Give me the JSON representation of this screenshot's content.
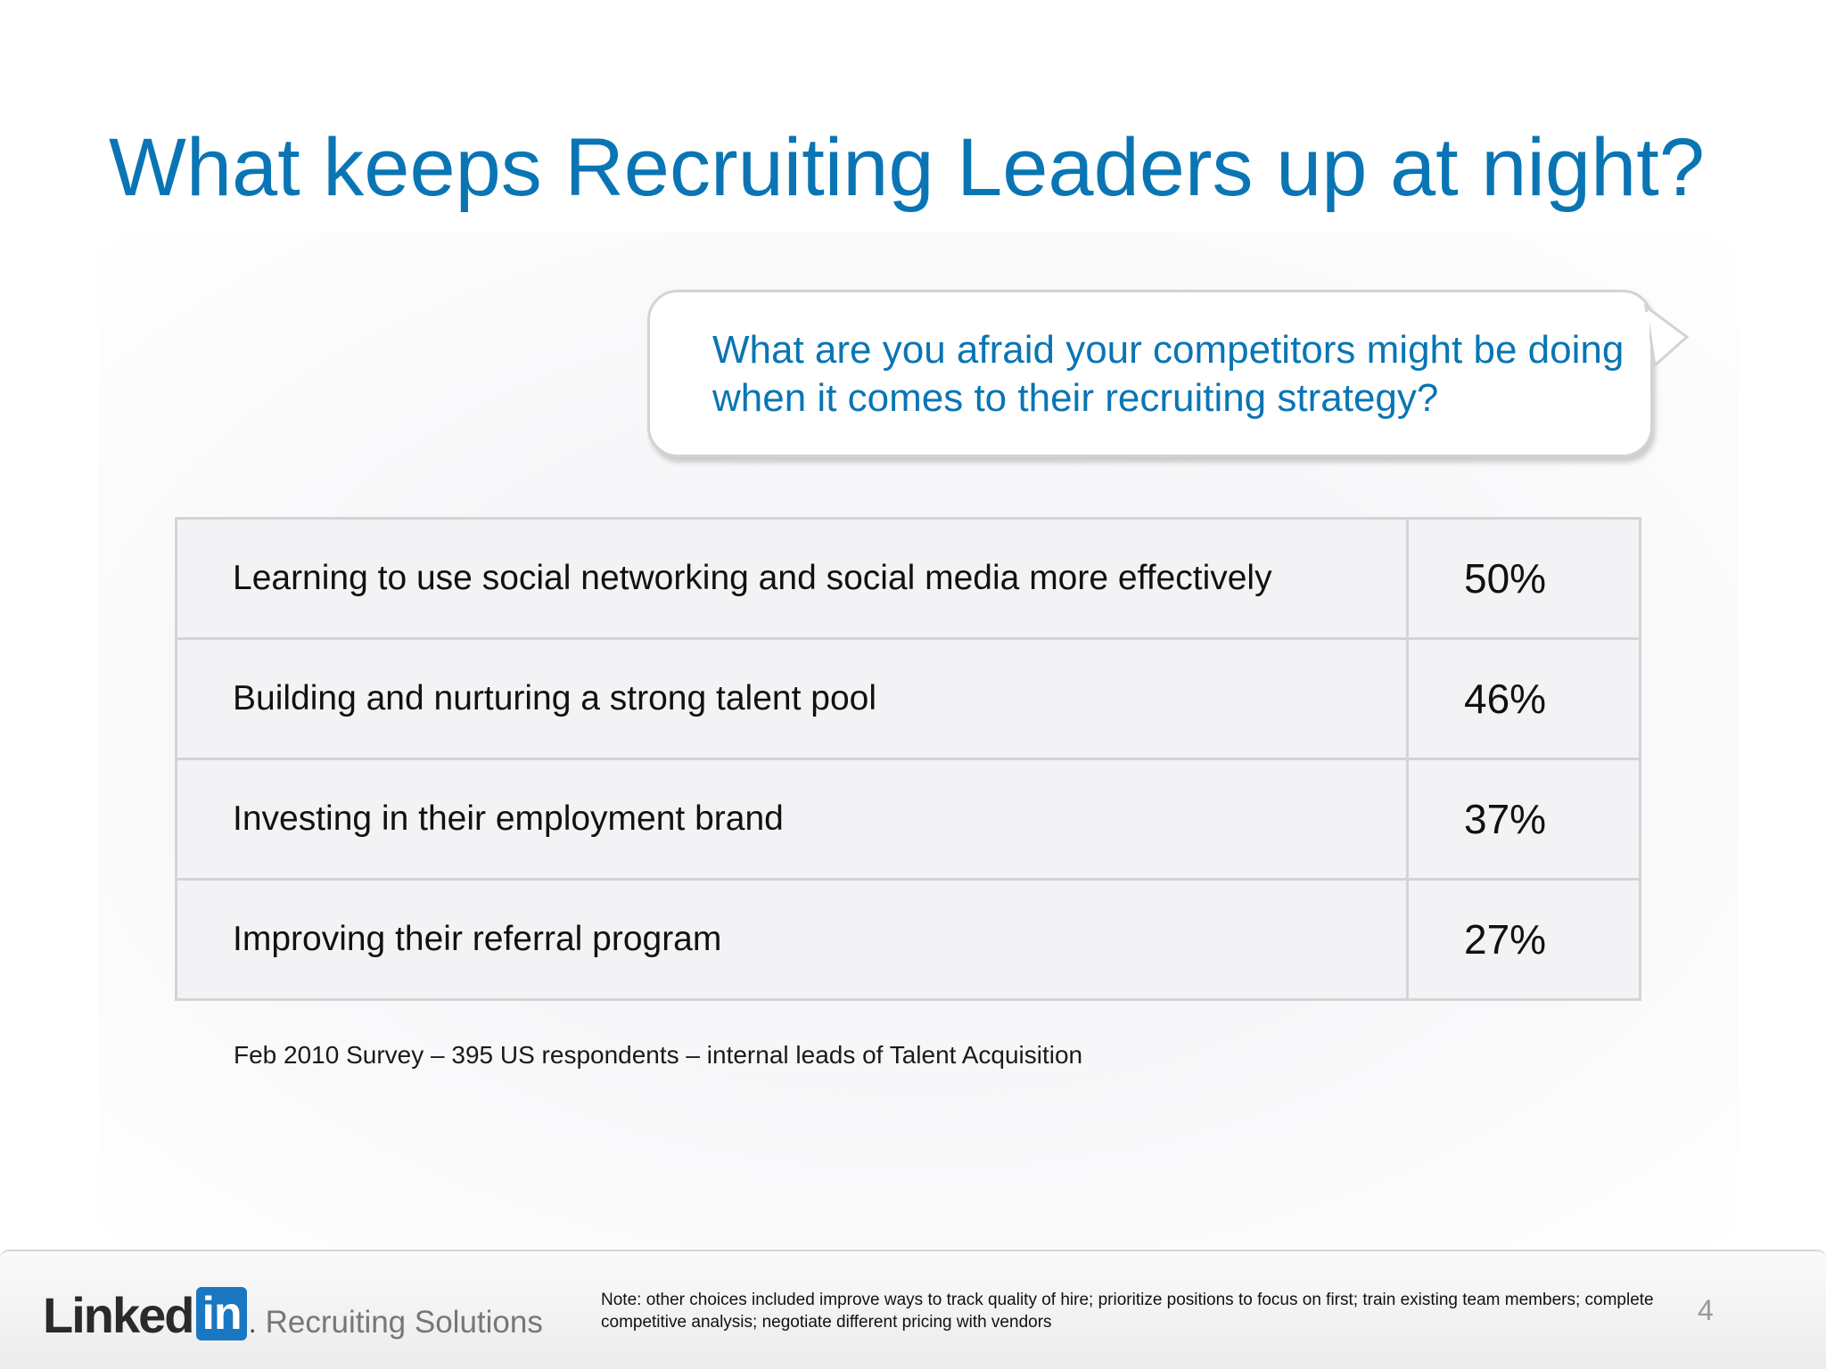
{
  "slide": {
    "title": "What keeps Recruiting Leaders up at night?",
    "question": "What are you afraid your competitors might be doing when it comes to their recruiting strategy?",
    "rows": [
      {
        "label": "Learning to use social networking and social media more effectively",
        "value": "50%"
      },
      {
        "label": "Building and nurturing a strong talent pool",
        "value": "46%"
      },
      {
        "label": "Investing in their employment brand",
        "value": "37%"
      },
      {
        "label": "Improving their referral program",
        "value": "27%"
      }
    ],
    "source": "Feb 2010 Survey – 395 US respondents – internal leads of Talent Acquisition"
  },
  "footer": {
    "logo_linked": "Linked",
    "logo_in": "in",
    "logo_dot": ".",
    "logo_sub": "Recruiting Solutions",
    "note": "Note: other choices included improve ways to track quality of hire; prioritize positions to focus on first; train existing team members; complete competitive analysis; negotiate different pricing with vendors",
    "page_number": "4"
  },
  "colors": {
    "title": "#0a75b4",
    "linkedin_blue": "#1a77c2"
  }
}
